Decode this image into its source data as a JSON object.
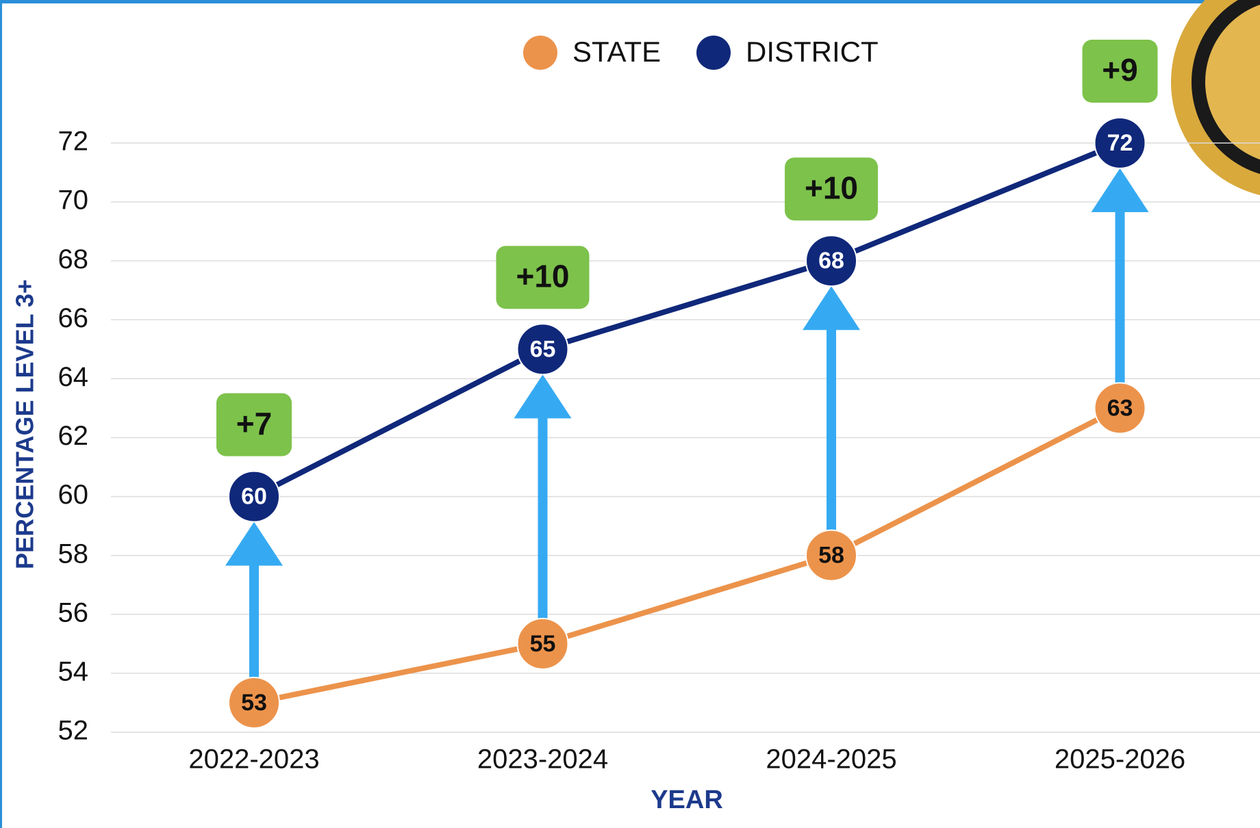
{
  "chart_data": {
    "type": "line",
    "categories": [
      "2022-2023",
      "2023-2024",
      "2024-2025",
      "2025-2026"
    ],
    "series": [
      {
        "name": "STATE",
        "color": "#ec934b",
        "values": [
          53,
          55,
          58,
          63
        ]
      },
      {
        "name": "DISTRICT",
        "color": "#10287a",
        "values": [
          60,
          65,
          68,
          72
        ]
      }
    ],
    "annotations": [
      "+7",
      "+10",
      "+10",
      "+9"
    ],
    "xlabel": "YEAR",
    "ylabel": "PERCENTAGE LEVEL 3+",
    "ylim": [
      52,
      72
    ],
    "yticks": [
      52,
      54,
      56,
      58,
      60,
      62,
      64,
      66,
      68,
      70,
      72
    ],
    "grid": true,
    "legend": "top"
  }
}
